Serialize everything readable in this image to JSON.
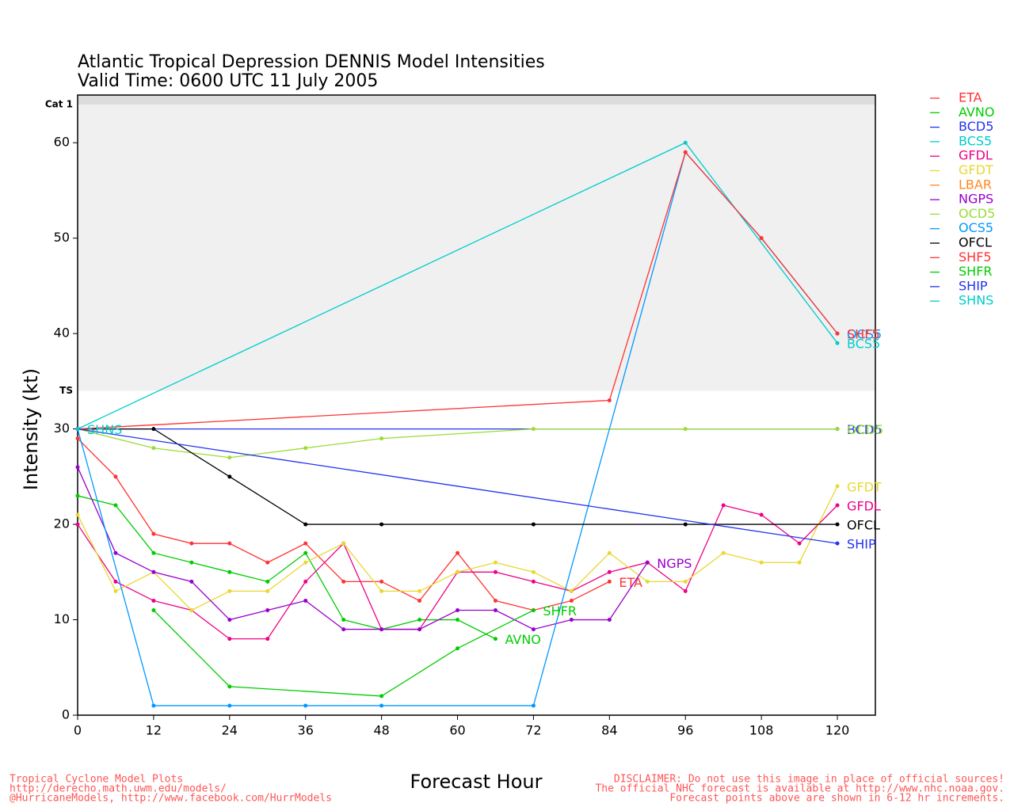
{
  "chart_data": {
    "type": "line",
    "title": "Atlantic Tropical Depression DENNIS Model Intensities",
    "subtitle": "Valid Time: 0600 UTC 11 July 2005",
    "xlabel": "Forecast Hour",
    "ylabel": "Intensity (kt)",
    "xlim": [
      0,
      126
    ],
    "ylim": [
      0,
      65
    ],
    "xticks": [
      0,
      12,
      24,
      36,
      48,
      60,
      72,
      84,
      96,
      108,
      120
    ],
    "yticks": [
      0,
      10,
      20,
      30,
      40,
      50,
      60
    ],
    "bands": [
      {
        "label": "TS",
        "from": 34,
        "to": 64,
        "color": "#f0f0f0"
      },
      {
        "label": "Cat 1",
        "from": 64,
        "to": 65,
        "color": "#dcdcdc"
      }
    ],
    "series": [
      {
        "name": "ETA",
        "color": "#ff3333",
        "x": [
          0,
          6,
          12,
          18,
          24,
          30,
          36,
          42,
          48,
          54,
          60,
          66,
          72,
          78,
          84
        ],
        "values": [
          29,
          25,
          19,
          18,
          18,
          16,
          18,
          14,
          14,
          12,
          17,
          12,
          11,
          12,
          14
        ]
      },
      {
        "name": "AVNO",
        "color": "#00cc00",
        "x": [
          0,
          6,
          12,
          18,
          24,
          30,
          36,
          42,
          48,
          54,
          60,
          66
        ],
        "values": [
          23,
          22,
          17,
          16,
          15,
          14,
          17,
          10,
          9,
          10,
          10,
          8
        ]
      },
      {
        "name": "BCD5",
        "color": "#2233ee",
        "x": [
          0,
          120
        ],
        "values": [
          30,
          30
        ]
      },
      {
        "name": "BCS5",
        "color": "#00cccc",
        "x": [
          0,
          96,
          120
        ],
        "values": [
          30,
          60,
          39
        ]
      },
      {
        "name": "GFDL",
        "color": "#ee0088",
        "x": [
          0,
          6,
          12,
          18,
          24,
          30,
          36,
          42,
          48,
          54,
          60,
          66,
          72,
          78,
          84,
          90,
          96,
          102,
          108,
          114,
          120
        ],
        "values": [
          20,
          14,
          12,
          11,
          8,
          8,
          14,
          18,
          9,
          9,
          15,
          15,
          14,
          13,
          15,
          16,
          13,
          22,
          21,
          18,
          22
        ]
      },
      {
        "name": "GFDT",
        "color": "#e8d830",
        "x": [
          0,
          6,
          12,
          18,
          24,
          30,
          36,
          42,
          48,
          54,
          60,
          66,
          72,
          78,
          84,
          90,
          96,
          102,
          108,
          114,
          120
        ],
        "values": [
          21,
          13,
          15,
          11,
          13,
          13,
          16,
          18,
          13,
          13,
          15,
          16,
          15,
          13,
          17,
          14,
          14,
          17,
          16,
          16,
          24
        ]
      },
      {
        "name": "LBAR",
        "color": "#ff8822",
        "x": [],
        "values": []
      },
      {
        "name": "NGPS",
        "color": "#9900cc",
        "x": [
          0,
          6,
          12,
          18,
          24,
          30,
          36,
          42,
          48,
          54,
          60,
          66,
          72,
          78,
          84,
          90
        ],
        "values": [
          26,
          17,
          15,
          14,
          10,
          11,
          12,
          9,
          9,
          9,
          11,
          11,
          9,
          10,
          10,
          16
        ]
      },
      {
        "name": "OCD5",
        "color": "#99dd33",
        "x": [
          0,
          12,
          24,
          36,
          48,
          72,
          96,
          120
        ],
        "values": [
          30,
          28,
          27,
          28,
          29,
          30,
          30,
          30
        ]
      },
      {
        "name": "OCS5",
        "color": "#0099ff",
        "x": [
          0,
          12,
          24,
          36,
          48,
          72,
          96,
          108,
          120
        ],
        "values": [
          30,
          1,
          1,
          1,
          1,
          1,
          59,
          50,
          40
        ]
      },
      {
        "name": "OFCL",
        "color": "#000000",
        "x": [
          0,
          12,
          24,
          36,
          48,
          72,
          96,
          120
        ],
        "values": [
          30,
          30,
          25,
          20,
          20,
          20,
          20,
          20
        ]
      },
      {
        "name": "SHF5",
        "color": "#ff3333",
        "x": [
          0,
          84,
          96,
          108,
          120
        ],
        "values": [
          30,
          33,
          59,
          50,
          40
        ]
      },
      {
        "name": "SHFR",
        "color": "#00cc00",
        "x": [
          12,
          24,
          48,
          60,
          72
        ],
        "values": [
          11,
          3,
          2,
          7,
          11
        ]
      },
      {
        "name": "SHIP",
        "color": "#2233ee",
        "x": [
          0,
          120
        ],
        "values": [
          30,
          18
        ]
      },
      {
        "name": "SHNS",
        "color": "#00cccc",
        "x": [
          0
        ],
        "values": [
          30
        ]
      }
    ]
  },
  "footer": {
    "left": [
      "Tropical Cyclone Model Plots",
      "http://derecho.math.uwm.edu/models/",
      "@HurricaneModels, http://www.facebook.com/HurrModels"
    ],
    "right": [
      "DISCLAIMER: Do not use this image in place of official sources!",
      "The official NHC forecast is available at http://www.nhc.noaa.gov.",
      "Forecast points above are shown in 6-12 hr increments."
    ]
  }
}
